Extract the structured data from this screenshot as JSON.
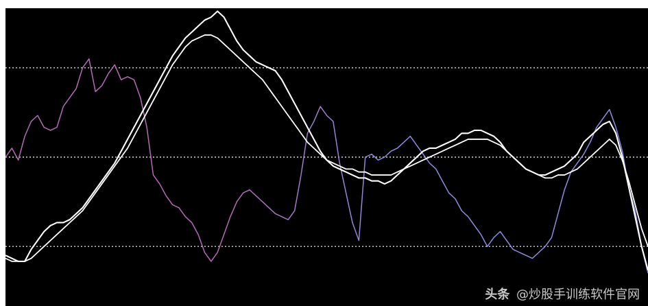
{
  "watermark": {
    "brand": "头条",
    "handle": "@炒股手训练软件官网"
  },
  "chart_data": {
    "type": "line",
    "title": "",
    "xlabel": "",
    "ylabel": "",
    "ylim": [
      0,
      100
    ],
    "xlim": [
      0,
      100
    ],
    "grid": false,
    "reference_levels": [
      80,
      50,
      20
    ],
    "colors": {
      "background": "#000000",
      "reference": "#d6d6d6",
      "primary": "#ffffff",
      "oscillator_high": "#b56bb8",
      "oscillator_low": "#8b8ee0"
    },
    "series": [
      {
        "x": [
          0,
          1,
          2,
          3,
          4,
          5,
          6,
          7,
          8,
          9,
          10,
          11,
          12,
          13,
          14,
          15,
          16,
          17,
          18,
          19,
          20,
          21,
          22,
          23,
          24,
          25,
          26,
          27,
          28,
          29,
          30,
          31,
          32,
          33,
          34,
          35,
          36,
          37,
          38,
          39,
          40,
          41,
          42,
          43,
          44,
          45,
          46,
          47,
          48,
          49,
          50,
          51,
          52,
          53,
          54,
          55,
          56,
          57,
          58,
          59,
          60,
          61,
          62,
          63,
          64,
          65,
          66,
          67,
          68,
          69,
          70,
          71,
          72,
          73,
          74,
          75,
          76,
          77,
          78,
          79,
          80,
          81,
          82,
          83,
          84,
          85,
          86,
          87,
          88,
          89,
          90,
          91,
          92,
          93,
          94,
          95,
          96,
          97,
          98,
          99,
          100
        ],
        "values": [
          50,
          53,
          49,
          57,
          62,
          64,
          60,
          59,
          60,
          67,
          70,
          73,
          80,
          83,
          72,
          74,
          78,
          81,
          76,
          77,
          76,
          70,
          60,
          44,
          41,
          37,
          34,
          33,
          30,
          28,
          24,
          18,
          15,
          18,
          24,
          30,
          35,
          38,
          39,
          37,
          35,
          33,
          31,
          30,
          29,
          32,
          44,
          58,
          62,
          67,
          64,
          62,
          48,
          38,
          28,
          22,
          50,
          51,
          49,
          50,
          52,
          53,
          55,
          57,
          54,
          51,
          48,
          46,
          42,
          38,
          36,
          32,
          30,
          27,
          24,
          20,
          23,
          25,
          22,
          19,
          18,
          17,
          16,
          18,
          20,
          23,
          31,
          39,
          45,
          48,
          51,
          55,
          60,
          63,
          66,
          60,
          52,
          40,
          32,
          20,
          11
        ]
      },
      {
        "x": [
          0,
          1,
          2,
          3,
          4,
          5,
          6,
          7,
          8,
          9,
          10,
          11,
          12,
          13,
          14,
          15,
          16,
          17,
          18,
          19,
          20,
          21,
          22,
          23,
          24,
          25,
          26,
          27,
          28,
          29,
          30,
          31,
          32,
          33,
          34,
          35,
          36,
          37,
          38,
          39,
          40,
          41,
          42,
          43,
          44,
          45,
          46,
          47,
          48,
          49,
          50,
          51,
          52,
          53,
          54,
          55,
          56,
          57,
          58,
          59,
          60,
          61,
          62,
          63,
          64,
          65,
          66,
          67,
          68,
          69,
          70,
          71,
          72,
          73,
          74,
          75,
          76,
          77,
          78,
          79,
          80,
          81,
          82,
          83,
          84,
          85,
          86,
          87,
          88,
          89,
          90,
          91,
          92,
          93,
          94,
          95,
          96,
          97,
          98,
          99,
          100
        ],
        "values": [
          17,
          16,
          15,
          15,
          19,
          22,
          25,
          27,
          28,
          28,
          29,
          31,
          33,
          36,
          39,
          42,
          45,
          48,
          52,
          56,
          60,
          64,
          68,
          72,
          76,
          80,
          84,
          87,
          90,
          92,
          94,
          96,
          97,
          99,
          97,
          93,
          89,
          86,
          84,
          82,
          81,
          80,
          79,
          76,
          72,
          68,
          64,
          60,
          56,
          52,
          49,
          47,
          46,
          45,
          44,
          43,
          43,
          42,
          42,
          41,
          42,
          44,
          46,
          48,
          50,
          52,
          53,
          53,
          54,
          55,
          56,
          58,
          58,
          59,
          59,
          58,
          57,
          55,
          52,
          50,
          48,
          46,
          45,
          44,
          44,
          45,
          46,
          47,
          49,
          51,
          55,
          57,
          59,
          61,
          62,
          58,
          50,
          40,
          30,
          20,
          12
        ]
      },
      {
        "x": [
          0,
          1,
          2,
          3,
          4,
          5,
          6,
          7,
          8,
          9,
          10,
          11,
          12,
          13,
          14,
          15,
          16,
          17,
          18,
          19,
          20,
          21,
          22,
          23,
          24,
          25,
          26,
          27,
          28,
          29,
          30,
          31,
          32,
          33,
          34,
          35,
          36,
          37,
          38,
          39,
          40,
          41,
          42,
          43,
          44,
          45,
          46,
          47,
          48,
          49,
          50,
          51,
          52,
          53,
          54,
          55,
          56,
          57,
          58,
          59,
          60,
          61,
          62,
          63,
          64,
          65,
          66,
          67,
          68,
          69,
          70,
          71,
          72,
          73,
          74,
          75,
          76,
          77,
          78,
          79,
          80,
          81,
          82,
          83,
          84,
          85,
          86,
          87,
          88,
          89,
          90,
          91,
          92,
          93,
          94,
          95,
          96,
          97,
          98,
          99,
          100
        ],
        "values": [
          16,
          15,
          15,
          15,
          16,
          18,
          20,
          22,
          24,
          26,
          28,
          30,
          32,
          35,
          38,
          41,
          44,
          47,
          50,
          53,
          57,
          61,
          65,
          69,
          73,
          77,
          81,
          84,
          87,
          89,
          90,
          91,
          91,
          90,
          88,
          86,
          84,
          82,
          80,
          78,
          76,
          73,
          70,
          67,
          64,
          61,
          58,
          55,
          53,
          51,
          49,
          48,
          47,
          46,
          46,
          45,
          45,
          44,
          44,
          44,
          44,
          45,
          46,
          47,
          48,
          49,
          50,
          51,
          52,
          53,
          54,
          55,
          56,
          56,
          56,
          56,
          55,
          54,
          52,
          50,
          48,
          46,
          45,
          44,
          43,
          43,
          44,
          44,
          45,
          46,
          48,
          50,
          52,
          54,
          56,
          54,
          49,
          42,
          34,
          26,
          20
        ]
      }
    ]
  }
}
